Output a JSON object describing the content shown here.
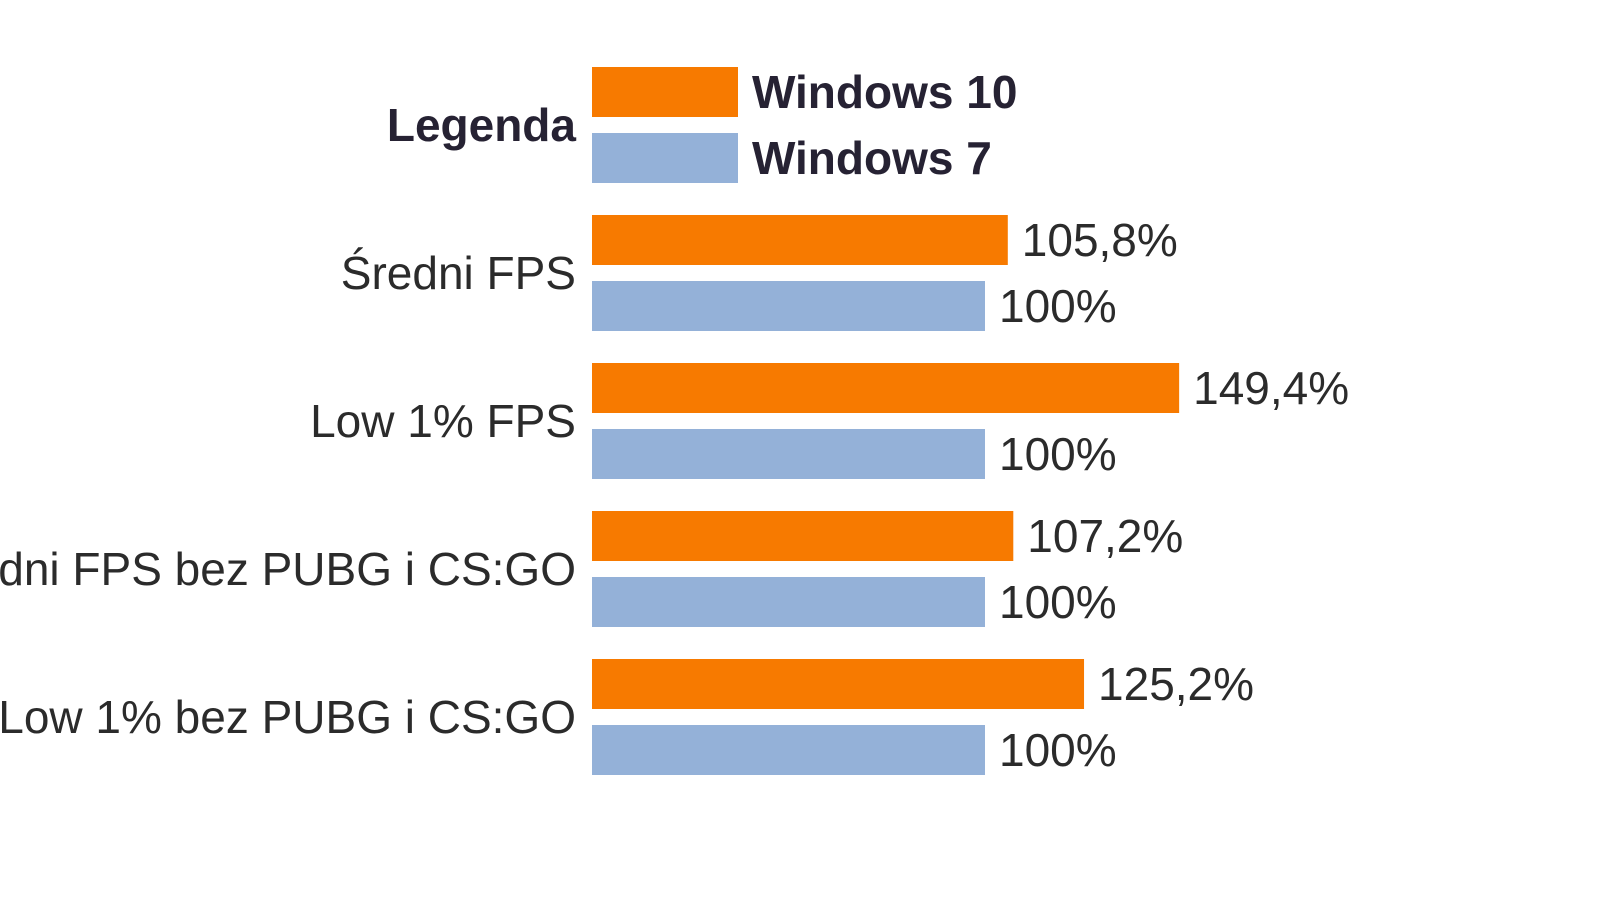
{
  "chart_data": {
    "type": "bar",
    "orientation": "horizontal",
    "legend": {
      "title": "Legenda",
      "placement": "top-left"
    },
    "categories": [
      "Średni FPS",
      "Low 1% FPS",
      "Średni FPS bez PUBG i CS:GO",
      "Low 1% bez PUBG i CS:GO"
    ],
    "series": [
      {
        "name": "Windows 10",
        "color": "#f77a00",
        "values": [
          105.8,
          149.4,
          107.2,
          125.2
        ],
        "labels": [
          "105,8%",
          "149,4%",
          "107,2%",
          "125,2%"
        ]
      },
      {
        "name": "Windows 7",
        "color": "#94b1d8",
        "values": [
          100,
          100,
          100,
          100
        ],
        "labels": [
          "100%",
          "100%",
          "100%",
          "100%"
        ]
      }
    ],
    "xlim": [
      0,
      150
    ],
    "grid": false
  }
}
